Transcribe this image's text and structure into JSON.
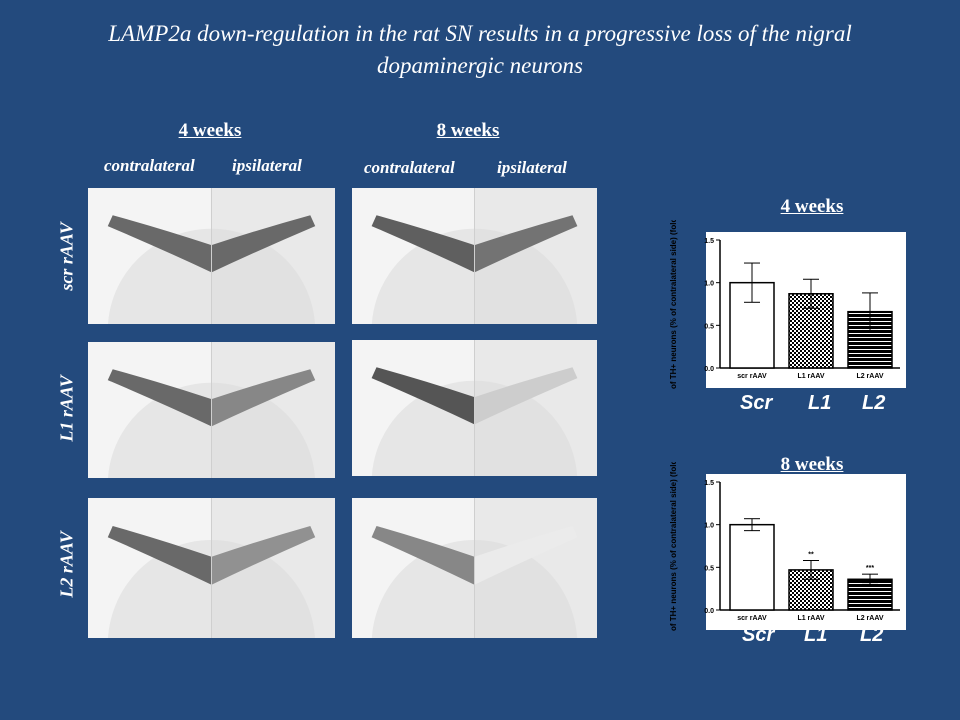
{
  "title_line1": "LAMP2a down-regulation in the rat SN results in a progressive loss of the nigral",
  "title_line2": "dopaminergic neurons",
  "columns": [
    {
      "header": "4 weeks",
      "left": "contralateral",
      "right": "ipsilateral"
    },
    {
      "header": "8 weeks",
      "left": "contralateral",
      "right": "ipsilateral"
    }
  ],
  "rows": [
    "scr rAAV",
    "L1 rAAV",
    "L2 rAAV"
  ],
  "group_labels": [
    "Scr",
    "L1",
    "L2"
  ],
  "colors": {
    "background": "#234a7d",
    "text": "#ffffff",
    "bar_edge": "#000000"
  },
  "chart_data": [
    {
      "type": "bar",
      "title": "4 weeks",
      "ylabel": "Number of TH+ neurons (% of contralateral side) (folds of scr)",
      "categories": [
        "scr rAAV",
        "L1 rAAV",
        "L2 rAAV"
      ],
      "values": [
        1.0,
        0.87,
        0.66
      ],
      "errors": [
        0.23,
        0.17,
        0.22
      ],
      "significance": [
        "",
        "",
        ""
      ],
      "ylim": [
        0,
        1.5
      ],
      "yticks": [
        "0.0",
        "0.5",
        "1.0",
        "1.5"
      ],
      "patterns": [
        "white",
        "checker",
        "hlines"
      ]
    },
    {
      "type": "bar",
      "title": "8 weeks",
      "ylabel": "Number of TH+ neurons (% of contralateral side) (folds of scr)",
      "categories": [
        "scr rAAV",
        "L1 rAAV",
        "L2 rAAV"
      ],
      "values": [
        1.0,
        0.47,
        0.36
      ],
      "errors": [
        0.07,
        0.11,
        0.06
      ],
      "significance": [
        "",
        "**",
        "***"
      ],
      "ylim": [
        0,
        1.5
      ],
      "yticks": [
        "0.0",
        "0.5",
        "1.0",
        "1.5"
      ],
      "patterns": [
        "white",
        "checker",
        "hlines"
      ]
    }
  ]
}
